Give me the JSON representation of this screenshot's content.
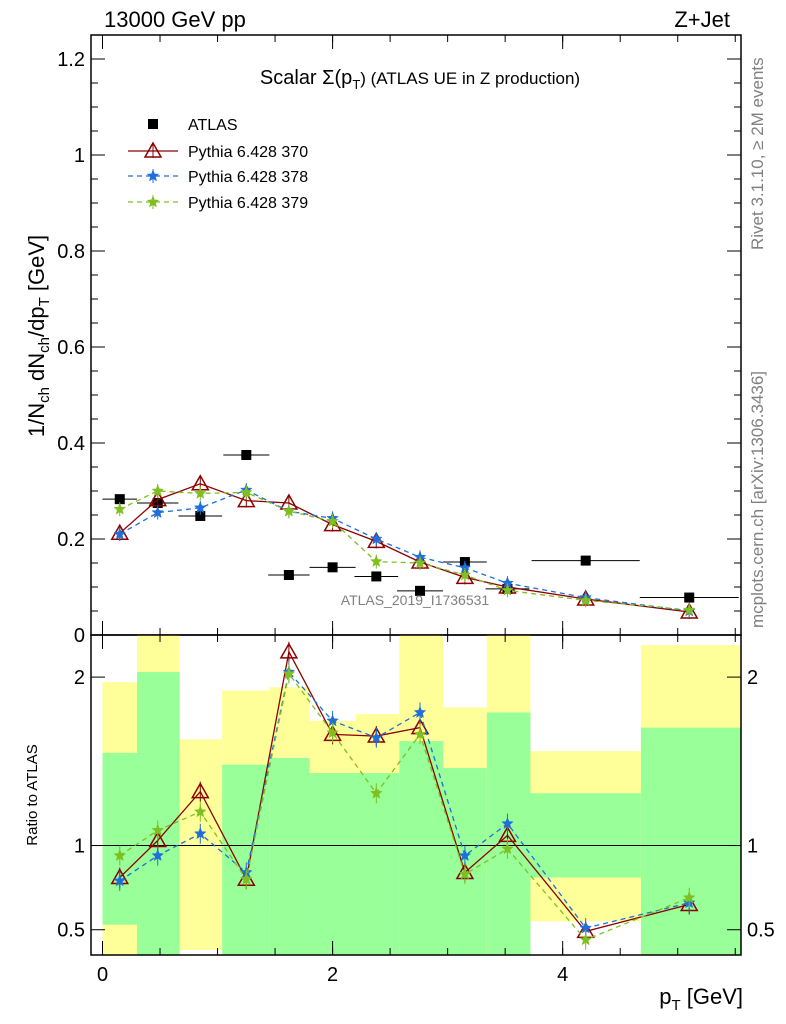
{
  "header": {
    "left": "13000 GeV pp",
    "right": "Z+Jet"
  },
  "side_text": {
    "rivet": "Rivet 3.1.10, ≥ 2M events",
    "mcplots": "mcplots.cern.ch [arXiv:1306.3436]"
  },
  "watermark": "ATLAS_2019_I1736531",
  "chart_data": [
    {
      "type": "scatter",
      "title_main": "Scalar Σ(p",
      "title_sub": "T",
      "title_tail": ") (ATLAS UE in Z production)",
      "ylabel": "1/N ch dN ch/dp T [GeV]",
      "ylabel_parts": [
        "1/N",
        "ch",
        " dN",
        "ch",
        "/dp",
        "T",
        " [GeV]"
      ],
      "ylim": [
        0,
        1.25
      ],
      "xlim": [
        -0.1,
        5.55
      ],
      "yticks": [
        0,
        0.2,
        0.4,
        0.6,
        0.8,
        1,
        1.2
      ],
      "ytick_labels": [
        "0",
        "0.2",
        "0.4",
        "0.6",
        "0.8",
        "1",
        "1.2"
      ],
      "x": [
        0.15,
        0.48,
        0.85,
        1.25,
        1.62,
        2.0,
        2.38,
        2.76,
        3.15,
        3.52,
        4.2,
        5.1
      ],
      "xerr": [
        0.15,
        0.18,
        0.19,
        0.2,
        0.18,
        0.2,
        0.19,
        0.2,
        0.19,
        0.19,
        0.47,
        0.43
      ],
      "series": [
        {
          "name": "ATLAS",
          "color": "#000000",
          "marker": "square",
          "values": [
            0.283,
            0.275,
            0.248,
            0.375,
            0.125,
            0.141,
            0.122,
            0.092,
            0.152,
            0.096,
            0.155,
            0.078
          ]
        },
        {
          "name": "Pythia 6.428 370",
          "color": "#8b0000",
          "marker": "triangle-open",
          "line": "solid",
          "values": [
            0.212,
            0.282,
            0.315,
            0.28,
            0.275,
            0.23,
            0.195,
            0.152,
            0.12,
            0.1,
            0.075,
            0.048
          ]
        },
        {
          "name": "Pythia 6.428 378",
          "color": "#1e6fd9",
          "marker": "star",
          "line": "dashed",
          "values": [
            0.21,
            0.255,
            0.265,
            0.302,
            0.258,
            0.243,
            0.2,
            0.162,
            0.14,
            0.108,
            0.078,
            0.05
          ]
        },
        {
          "name": "Pythia 6.428 379",
          "color": "#7fbf1f",
          "marker": "star",
          "line": "dashed",
          "values": [
            0.262,
            0.3,
            0.295,
            0.297,
            0.258,
            0.237,
            0.153,
            0.15,
            0.125,
            0.093,
            0.072,
            0.052
          ]
        }
      ]
    },
    {
      "type": "line",
      "ylabel": "Ratio to ATLAS",
      "ylim": [
        0.35,
        2.25
      ],
      "xlim": [
        -0.1,
        5.55
      ],
      "yticks": [
        0.5,
        1,
        2
      ],
      "ytick_labels": [
        "0.5",
        "1",
        "2"
      ],
      "xticks": [
        0,
        2,
        4
      ],
      "xtick_labels": [
        "0",
        "2",
        "4"
      ],
      "xlabel_main": "p",
      "xlabel_sub": "T",
      "xlabel_tail": " [GeV]",
      "x": [
        0.15,
        0.48,
        0.85,
        1.25,
        1.62,
        2.0,
        2.38,
        2.76,
        3.15,
        3.52,
        4.2,
        5.1
      ],
      "bands": {
        "edges": [
          0.0,
          0.3,
          0.67,
          1.04,
          1.45,
          1.8,
          2.2,
          2.58,
          2.96,
          3.34,
          3.72,
          4.68,
          5.55
        ],
        "yellow_lo": [
          0.35,
          0.35,
          0.38,
          0.57,
          0.58,
          0.73,
          0.7,
          0.35,
          0.66,
          0.35,
          0.55,
          0.35
        ],
        "yellow_hi": [
          1.97,
          2.25,
          1.63,
          1.92,
          1.94,
          1.74,
          1.78,
          2.25,
          1.82,
          2.25,
          1.56,
          2.19
        ],
        "green_lo": [
          0.53,
          0.35,
          0.76,
          0.35,
          0.35,
          0.35,
          0.35,
          0.35,
          0.35,
          0.35,
          0.81,
          0.35
        ],
        "green_hi": [
          1.55,
          2.03,
          0.38,
          1.48,
          1.52,
          1.43,
          1.43,
          1.62,
          1.46,
          1.79,
          1.31,
          1.7
        ]
      },
      "series": [
        {
          "name": "Pythia 6.428 370",
          "color": "#8b0000",
          "marker": "triangle-open",
          "line": "solid",
          "values": [
            0.81,
            1.03,
            1.32,
            0.8,
            2.15,
            1.66,
            1.65,
            1.7,
            0.84,
            1.06,
            0.49,
            0.65
          ]
        },
        {
          "name": "Pythia 6.428 378",
          "color": "#1e6fd9",
          "marker": "star",
          "line": "dashed",
          "values": [
            0.79,
            0.94,
            1.07,
            0.84,
            2.03,
            1.74,
            1.64,
            1.79,
            0.94,
            1.13,
            0.51,
            0.66
          ]
        },
        {
          "name": "Pythia 6.428 379",
          "color": "#7fbf1f",
          "marker": "star",
          "line": "dashed",
          "values": [
            0.94,
            1.09,
            1.2,
            0.8,
            2.02,
            1.67,
            1.31,
            1.66,
            0.83,
            0.98,
            0.44,
            0.69
          ]
        }
      ]
    }
  ]
}
